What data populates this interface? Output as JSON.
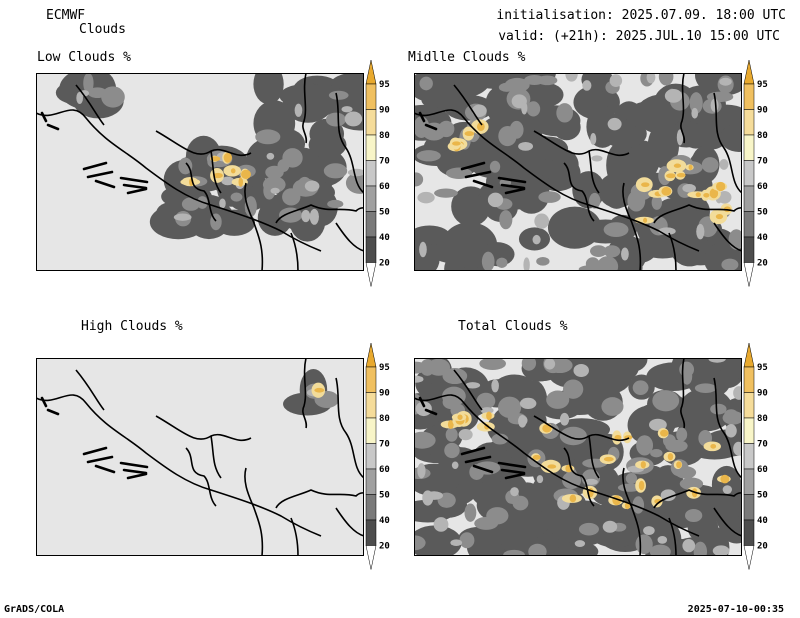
{
  "header": {
    "model": "ECMWF",
    "product": "Clouds",
    "initialisation": "initialisation: 2025.07.09. 18:00 UTC",
    "valid": "valid: (+21h): 2025.JUL.10 15:00 UTC"
  },
  "panels": [
    {
      "id": "low",
      "title": "Low Clouds %"
    },
    {
      "id": "middle",
      "title": "Midlle Clouds %"
    },
    {
      "id": "high",
      "title": "High Clouds %"
    },
    {
      "id": "total",
      "title": "Total Clouds %"
    }
  ],
  "colorbar": {
    "levels": [
      "20",
      "40",
      "50",
      "60",
      "70",
      "80",
      "90",
      "95"
    ],
    "colors": [
      "#ffffff",
      "#4d4d4d",
      "#7a7a7a",
      "#a0a0a0",
      "#c8c8c8",
      "#f8f5c8",
      "#f5dc9a",
      "#f0c060",
      "#e8a92e"
    ]
  },
  "map_colors": {
    "land": "#e6e6e6",
    "cloud_dark": "#5a5a5a",
    "cloud_mid": "#8c8c8c",
    "cloud_light": "#b4b4b4",
    "cloud_yellow_light": "#f2dc9a",
    "cloud_yellow": "#eab64a"
  },
  "footer": {
    "left": "GrADS/COLA",
    "right": "2025-07-10-00:35"
  }
}
